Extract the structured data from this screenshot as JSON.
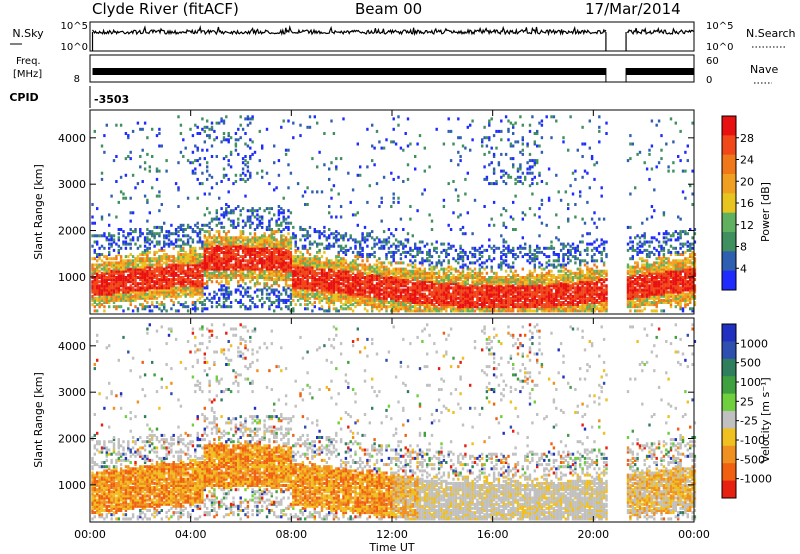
{
  "header": {
    "station": "Clyde River (fitACF)",
    "beam": "Beam 00",
    "date": "17/Mar/2014"
  },
  "colors": {
    "power_scale": [
      "#1f2bff",
      "#2f5fb0",
      "#3f8f5f",
      "#5fb05f",
      "#e8c420",
      "#f0a020",
      "#f07818",
      "#f04818",
      "#e81010"
    ],
    "velocity_scale": [
      "#2030c0",
      "#2f4fb0",
      "#2f7f5f",
      "#3fa040",
      "#6fcf3f",
      "#c0c0c0",
      "#f0c020",
      "#f09020",
      "#f06010",
      "#e82010"
    ]
  },
  "chart_data": [
    {
      "type": "line",
      "panel": "noise",
      "left_label": "N.Sky",
      "right_label": "N.Search",
      "left_ticks": [
        "10^5",
        "10^0"
      ],
      "right_ticks": [
        "10^5",
        "10^0"
      ],
      "gap_hours": [
        20.5,
        21.3
      ]
    },
    {
      "type": "line",
      "panel": "frequency",
      "left_label": "Freq. [MHz]",
      "right_label": "Nave",
      "left_ticks": [
        "8"
      ],
      "right_ticks": [
        "60",
        "0"
      ],
      "gap_hours": [
        20.5,
        21.3
      ]
    },
    {
      "type": "table",
      "panel": "cpid",
      "label": "CPID",
      "value": "-3503"
    },
    {
      "type": "heatmap",
      "panel": "power",
      "ylabel": "Slant Range [km]",
      "yticks": [
        1000,
        2000,
        3000,
        4000
      ],
      "ylim": [
        200,
        4600
      ],
      "xlim": [
        0,
        24
      ],
      "colorbar_label": "Power [dB]",
      "colorbar_ticks": [
        4,
        8,
        12,
        16,
        20,
        24,
        28
      ]
    },
    {
      "type": "heatmap",
      "panel": "velocity",
      "ylabel": "Slant Range [km]",
      "yticks": [
        1000,
        2000,
        3000,
        4000
      ],
      "ylim": [
        200,
        4600
      ],
      "xlim": [
        0,
        24
      ],
      "xticks": [
        "00:00",
        "04:00",
        "08:00",
        "12:00",
        "16:00",
        "20:00",
        "00:00"
      ],
      "xlabel": "Time UT",
      "colorbar_label": "Velocity [m s⁻¹]",
      "colorbar_ticks": [
        "1000",
        "500",
        "100",
        "25",
        "-25",
        "-100",
        "-500",
        "-1000"
      ]
    }
  ]
}
